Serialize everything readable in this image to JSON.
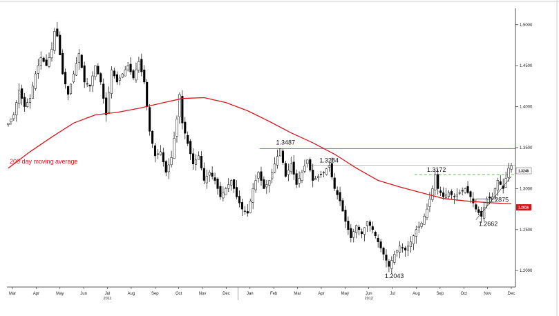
{
  "chart_data": {
    "type": "candlestick",
    "colors": {
      "ma": "#d6151b",
      "resistance": "#3a9a2a",
      "dashed": "#3a9a2a",
      "support": "#333333",
      "candles": "#000000",
      "current_tag": "#ffffff",
      "ma_tag": "#d6151b"
    },
    "y_axis": {
      "min": 1.18,
      "max": 1.52,
      "ticks": [
        "1.2000",
        "1.2500",
        "1.3000",
        "1.3500",
        "1.4000",
        "1.4500",
        "1.5000"
      ],
      "position": "right"
    },
    "months": [
      "Mar",
      "Apr",
      "May",
      "Jun",
      "Jul",
      "Aug",
      "Sep",
      "Oct",
      "Nov",
      "Dec",
      "Jan",
      "Feb",
      "Mar",
      "Apr",
      "May",
      "Jun",
      "Jul",
      "Aug",
      "Sep",
      "Oct",
      "Nov",
      "Dec"
    ],
    "years": [
      "2011",
      "2012"
    ],
    "price_path": [
      [
        0,
        1.38
      ],
      [
        2,
        1.39
      ],
      [
        4,
        1.42
      ],
      [
        6,
        1.4
      ],
      [
        8,
        1.41
      ],
      [
        10,
        1.44
      ],
      [
        12,
        1.46
      ],
      [
        14,
        1.45
      ],
      [
        16,
        1.47
      ],
      [
        17,
        1.492
      ],
      [
        18,
        1.486
      ],
      [
        20,
        1.44
      ],
      [
        22,
        1.415
      ],
      [
        24,
        1.44
      ],
      [
        26,
        1.465
      ],
      [
        28,
        1.43
      ],
      [
        30,
        1.425
      ],
      [
        32,
        1.45
      ],
      [
        34,
        1.43
      ],
      [
        36,
        1.39
      ],
      [
        38,
        1.445
      ],
      [
        40,
        1.43
      ],
      [
        42,
        1.44
      ],
      [
        44,
        1.45
      ],
      [
        46,
        1.435
      ],
      [
        48,
        1.455
      ],
      [
        50,
        1.43
      ],
      [
        52,
        1.37
      ],
      [
        54,
        1.34
      ],
      [
        56,
        1.345
      ],
      [
        58,
        1.32
      ],
      [
        60,
        1.338
      ],
      [
        62,
        1.385
      ],
      [
        63,
        1.415
      ],
      [
        64,
        1.38
      ],
      [
        66,
        1.355
      ],
      [
        68,
        1.33
      ],
      [
        70,
        1.34
      ],
      [
        72,
        1.31
      ],
      [
        74,
        1.32
      ],
      [
        76,
        1.31
      ],
      [
        78,
        1.29
      ],
      [
        80,
        1.3
      ],
      [
        82,
        1.31
      ],
      [
        84,
        1.29
      ],
      [
        86,
        1.275
      ],
      [
        88,
        1.27
      ],
      [
        90,
        1.3
      ],
      [
        92,
        1.32
      ],
      [
        94,
        1.3
      ],
      [
        96,
        1.31
      ],
      [
        98,
        1.33
      ],
      [
        100,
        1.3487
      ],
      [
        102,
        1.315
      ],
      [
        104,
        1.33
      ],
      [
        106,
        1.305
      ],
      [
        108,
        1.32
      ],
      [
        110,
        1.335
      ],
      [
        112,
        1.31
      ],
      [
        114,
        1.315
      ],
      [
        116,
        1.32
      ],
      [
        118,
        1.3284
      ],
      [
        120,
        1.3
      ],
      [
        122,
        1.285
      ],
      [
        124,
        1.26
      ],
      [
        126,
        1.24
      ],
      [
        128,
        1.255
      ],
      [
        130,
        1.245
      ],
      [
        132,
        1.26
      ],
      [
        134,
        1.25
      ],
      [
        136,
        1.235
      ],
      [
        138,
        1.22
      ],
      [
        140,
        1.205
      ],
      [
        142,
        1.22
      ],
      [
        144,
        1.23
      ],
      [
        146,
        1.225
      ],
      [
        148,
        1.235
      ],
      [
        150,
        1.25
      ],
      [
        152,
        1.258
      ],
      [
        154,
        1.275
      ],
      [
        156,
        1.3
      ],
      [
        157,
        1.3172
      ],
      [
        158,
        1.3
      ],
      [
        160,
        1.29
      ],
      [
        162,
        1.295
      ],
      [
        164,
        1.29
      ],
      [
        166,
        1.295
      ],
      [
        168,
        1.3
      ],
      [
        170,
        1.29
      ],
      [
        172,
        1.275
      ],
      [
        174,
        1.2662
      ],
      [
        176,
        1.2875
      ],
      [
        178,
        1.29
      ],
      [
        180,
        1.31
      ],
      [
        182,
        1.3
      ],
      [
        184,
        1.325
      ],
      [
        185,
        1.328
      ]
    ],
    "moving_average": {
      "label": "200 day moving average",
      "points": [
        [
          0,
          1.325
        ],
        [
          8,
          1.345
        ],
        [
          16,
          1.363
        ],
        [
          24,
          1.38
        ],
        [
          32,
          1.39
        ],
        [
          40,
          1.393
        ],
        [
          48,
          1.398
        ],
        [
          56,
          1.404
        ],
        [
          64,
          1.41
        ],
        [
          72,
          1.411
        ],
        [
          80,
          1.405
        ],
        [
          88,
          1.395
        ],
        [
          96,
          1.382
        ],
        [
          104,
          1.368
        ],
        [
          112,
          1.356
        ],
        [
          120,
          1.342
        ],
        [
          128,
          1.325
        ],
        [
          136,
          1.31
        ],
        [
          144,
          1.302
        ],
        [
          152,
          1.295
        ],
        [
          160,
          1.288
        ],
        [
          168,
          1.285
        ],
        [
          176,
          1.283
        ],
        [
          185,
          1.2815
        ]
      ]
    },
    "levels": [
      {
        "label": "1.3487",
        "value": 1.3487,
        "style": "solid"
      },
      {
        "label": "1.3284",
        "value": 1.3284,
        "style": "solid"
      },
      {
        "label": "1.3172",
        "value": 1.3172,
        "style": "dashed"
      }
    ],
    "annotations": [
      {
        "label": "1.3487",
        "x": 100,
        "value": 1.3487
      },
      {
        "label": "1.3284",
        "x": 118,
        "value": 1.3284
      },
      {
        "label": "1.3172",
        "x": 157,
        "value": 1.3172
      },
      {
        "label": "1.2875",
        "x": 176,
        "value": 1.2875
      },
      {
        "label": "1.2662",
        "x": 174,
        "value": 1.2662
      },
      {
        "label": "1.2043",
        "x": 140,
        "value": 1.2043
      }
    ],
    "current_price_tag": "1.3246",
    "ma_price_tag": "1.2816"
  }
}
